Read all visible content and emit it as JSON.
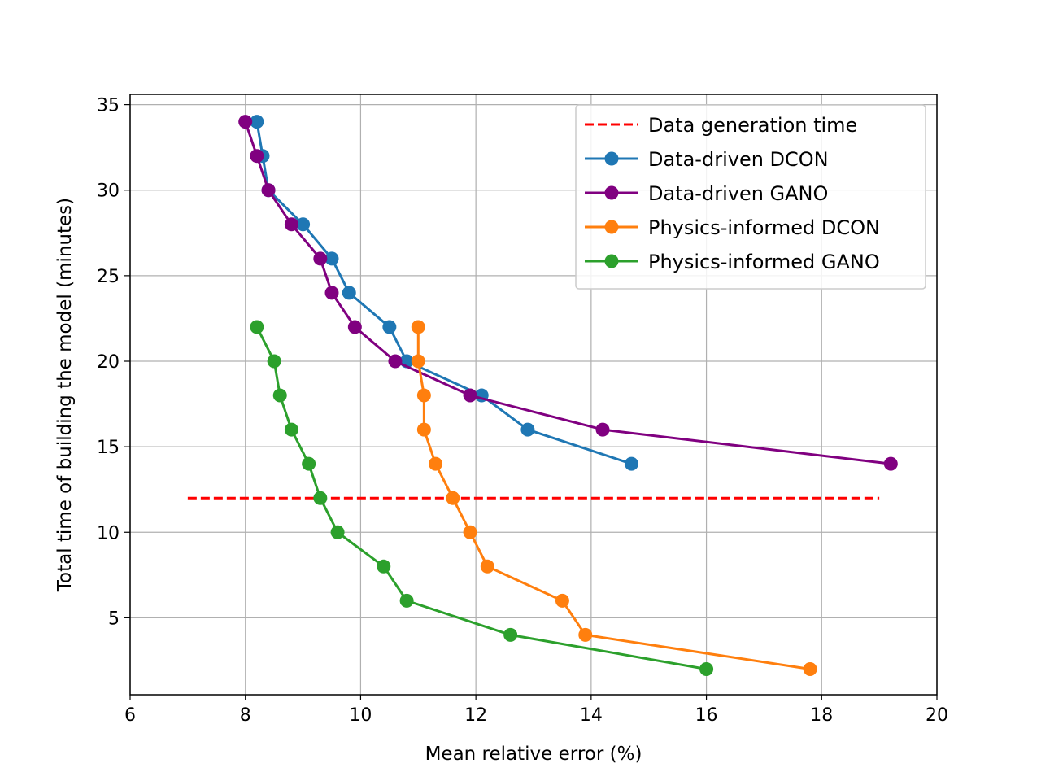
{
  "chart_data": {
    "type": "line",
    "title": "",
    "xlabel": "Mean relative error (%)",
    "ylabel": "Total time of building the model (minutes)",
    "xlim": [
      6,
      20
    ],
    "ylim": [
      0.5,
      35.6
    ],
    "xticks": [
      6,
      8,
      10,
      12,
      14,
      16,
      18,
      20
    ],
    "yticks": [
      5,
      10,
      15,
      20,
      25,
      30,
      35
    ],
    "grid": true,
    "legend_position": "top-right",
    "series": [
      {
        "name": "Data generation time",
        "style": "dashed",
        "marker": "none",
        "color": "#ff0000",
        "points": [
          [
            7,
            12
          ],
          [
            19,
            12
          ]
        ]
      },
      {
        "name": "Data-driven DCON",
        "style": "solid",
        "marker": "circle",
        "color": "#1f77b4",
        "points": [
          [
            8.2,
            34
          ],
          [
            8.3,
            32
          ],
          [
            8.4,
            30
          ],
          [
            9.0,
            28
          ],
          [
            9.5,
            26
          ],
          [
            9.8,
            24
          ],
          [
            10.5,
            22
          ],
          [
            10.8,
            20
          ],
          [
            12.1,
            18
          ],
          [
            12.9,
            16
          ],
          [
            14.7,
            14
          ]
        ]
      },
      {
        "name": "Data-driven GANO",
        "style": "solid",
        "marker": "circle",
        "color": "#800080",
        "points": [
          [
            8.0,
            34
          ],
          [
            8.2,
            32
          ],
          [
            8.4,
            30
          ],
          [
            8.8,
            28
          ],
          [
            9.3,
            26
          ],
          [
            9.5,
            24
          ],
          [
            9.9,
            22
          ],
          [
            10.6,
            20
          ],
          [
            11.9,
            18
          ],
          [
            14.2,
            16
          ],
          [
            19.2,
            14
          ]
        ]
      },
      {
        "name": "Physics-informed DCON",
        "style": "solid",
        "marker": "circle",
        "color": "#ff7f0e",
        "points": [
          [
            11.0,
            22
          ],
          [
            11.0,
            20
          ],
          [
            11.1,
            18
          ],
          [
            11.1,
            16
          ],
          [
            11.3,
            14
          ],
          [
            11.6,
            12
          ],
          [
            11.9,
            10
          ],
          [
            12.2,
            8
          ],
          [
            13.5,
            6
          ],
          [
            13.9,
            4
          ],
          [
            17.8,
            2
          ]
        ]
      },
      {
        "name": "Physics-informed GANO",
        "style": "solid",
        "marker": "circle",
        "color": "#2ca02c",
        "points": [
          [
            8.2,
            22
          ],
          [
            8.5,
            20
          ],
          [
            8.6,
            18
          ],
          [
            8.8,
            16
          ],
          [
            9.1,
            14
          ],
          [
            9.3,
            12
          ],
          [
            9.6,
            10
          ],
          [
            10.4,
            8
          ],
          [
            10.8,
            6
          ],
          [
            12.6,
            4
          ],
          [
            16.0,
            2
          ]
        ]
      }
    ]
  }
}
